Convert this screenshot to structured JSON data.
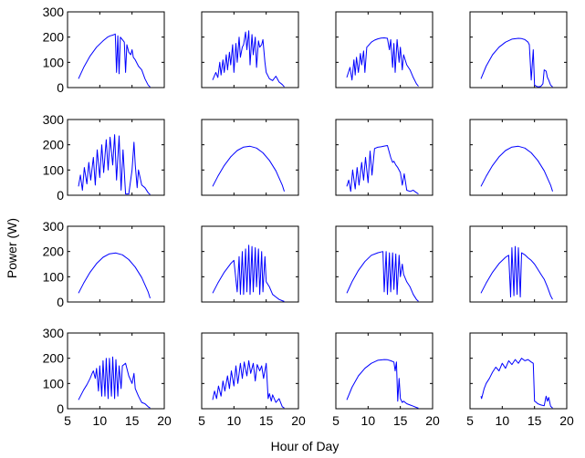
{
  "figure": {
    "xlabel": "Hour of Day",
    "ylabel": "Power (W)",
    "series_color": "#0000ff"
  },
  "chart_data": {
    "type": "line",
    "rows": 4,
    "cols": 4,
    "xlim": [
      5,
      20
    ],
    "ylim": [
      0,
      300
    ],
    "xticks": [
      5,
      10,
      15,
      20
    ],
    "yticks": [
      0,
      100,
      200,
      300
    ],
    "xtick_labels": [
      "5",
      "10",
      "15",
      "20"
    ],
    "ytick_labels": [
      "0",
      "100",
      "200",
      "300"
    ],
    "xlabel": "Hour of Day",
    "ylabel": "Power (W)",
    "grid": false,
    "panels": [
      {
        "x": [
          6.7,
          7.5,
          8.5,
          9.5,
          10.5,
          11.2,
          11.6,
          12.0,
          12.2,
          12.4,
          12.6,
          12.8,
          13.0,
          13.2,
          13.5,
          13.8,
          14.0,
          14.2,
          14.5,
          14.8,
          15.0,
          15.2,
          15.5,
          16.0,
          16.5,
          17.0,
          17.5,
          17.8
        ],
        "y": [
          35,
          80,
          125,
          160,
          185,
          200,
          205,
          208,
          210,
          212,
          60,
          205,
          55,
          200,
          190,
          180,
          60,
          170,
          140,
          130,
          150,
          120,
          110,
          85,
          70,
          35,
          10,
          2
        ]
      },
      {
        "x": [
          6.7,
          7.2,
          7.5,
          7.8,
          8.0,
          8.3,
          8.5,
          8.8,
          9.0,
          9.3,
          9.5,
          9.8,
          10.0,
          10.3,
          10.5,
          10.8,
          11.0,
          11.3,
          11.5,
          11.8,
          12.0,
          12.3,
          12.5,
          12.8,
          13.0,
          13.3,
          13.5,
          13.8,
          14.0,
          14.3,
          14.5,
          14.8,
          15.0,
          15.5,
          16.0,
          16.5,
          17.0,
          17.5,
          17.8
        ],
        "y": [
          30,
          60,
          40,
          100,
          50,
          110,
          60,
          130,
          70,
          140,
          90,
          170,
          60,
          175,
          100,
          200,
          120,
          160,
          170,
          220,
          150,
          225,
          90,
          210,
          130,
          200,
          80,
          185,
          160,
          170,
          190,
          100,
          60,
          35,
          28,
          45,
          22,
          12,
          3
        ]
      },
      {
        "x": [
          6.7,
          7.2,
          7.5,
          7.8,
          8.0,
          8.2,
          8.5,
          8.8,
          9.0,
          9.3,
          9.5,
          9.8,
          10.0,
          10.5,
          11.0,
          11.5,
          12.0,
          12.5,
          13.0,
          13.3,
          13.5,
          13.8,
          14.0,
          14.2,
          14.5,
          14.8,
          15.0,
          15.3,
          15.5,
          16.0,
          16.5,
          17.0,
          17.5,
          17.8
        ],
        "y": [
          40,
          80,
          30,
          110,
          50,
          120,
          60,
          135,
          90,
          145,
          60,
          160,
          165,
          180,
          188,
          193,
          196,
          197,
          195,
          150,
          190,
          80,
          175,
          60,
          190,
          100,
          160,
          70,
          130,
          90,
          70,
          40,
          15,
          5
        ]
      },
      {
        "x": [
          6.7,
          7.5,
          8.5,
          9.5,
          10.5,
          11.5,
          12.5,
          13.0,
          13.5,
          14.0,
          14.2,
          14.5,
          14.8,
          15.0,
          15.3,
          15.6,
          16.0,
          16.3,
          16.5,
          16.8,
          17.0,
          17.2,
          17.5,
          17.8
        ],
        "y": [
          35,
          85,
          130,
          160,
          180,
          192,
          195,
          194,
          190,
          180,
          170,
          30,
          150,
          10,
          5,
          3,
          5,
          15,
          70,
          65,
          40,
          30,
          10,
          3
        ]
      },
      {
        "x": [
          6.7,
          7.0,
          7.3,
          7.6,
          8.0,
          8.3,
          8.6,
          9.0,
          9.3,
          9.6,
          10.0,
          10.3,
          10.6,
          11.0,
          11.3,
          11.6,
          12.0,
          12.3,
          12.6,
          13.0,
          13.3,
          13.6,
          14.0,
          14.5,
          15.0,
          15.3,
          15.5,
          15.8,
          16.0,
          16.5,
          17.0,
          17.5,
          17.8
        ],
        "y": [
          35,
          80,
          20,
          110,
          45,
          130,
          60,
          150,
          40,
          180,
          70,
          200,
          90,
          220,
          100,
          230,
          120,
          240,
          60,
          235,
          20,
          180,
          5,
          5,
          100,
          210,
          120,
          30,
          100,
          40,
          30,
          10,
          3
        ]
      },
      {
        "x": [
          6.7,
          7.5,
          8.5,
          9.5,
          10.5,
          11.5,
          12.5,
          13.5,
          14.5,
          15.5,
          16.5,
          17.5,
          17.8
        ],
        "y": [
          35,
          75,
          118,
          152,
          177,
          191,
          194,
          187,
          168,
          138,
          97,
          40,
          15
        ]
      },
      {
        "x": [
          6.7,
          7.0,
          7.3,
          7.6,
          8.0,
          8.3,
          8.6,
          9.0,
          9.3,
          9.6,
          10.0,
          10.3,
          10.6,
          11.0,
          11.5,
          12.0,
          12.5,
          13.0,
          13.5,
          13.8,
          14.0,
          14.3,
          14.6,
          15.0,
          15.3,
          15.6,
          16.0,
          16.5,
          17.0,
          17.5,
          17.8
        ],
        "y": [
          35,
          60,
          15,
          100,
          25,
          110,
          40,
          130,
          60,
          150,
          50,
          175,
          80,
          185,
          190,
          192,
          195,
          197,
          150,
          130,
          135,
          120,
          110,
          90,
          40,
          85,
          20,
          15,
          20,
          10,
          5
        ]
      },
      {
        "x": [
          6.7,
          7.5,
          8.5,
          9.5,
          10.5,
          11.5,
          12.5,
          13.5,
          14.5,
          15.5,
          16.5,
          17.5,
          17.8
        ],
        "y": [
          35,
          75,
          118,
          152,
          177,
          191,
          194,
          187,
          168,
          138,
          97,
          40,
          15
        ]
      },
      {
        "x": [
          6.7,
          7.5,
          8.5,
          9.5,
          10.5,
          11.5,
          12.5,
          13.5,
          14.5,
          15.5,
          16.5,
          17.5,
          17.8
        ],
        "y": [
          35,
          75,
          118,
          152,
          177,
          191,
          194,
          187,
          168,
          138,
          97,
          40,
          15
        ]
      },
      {
        "x": [
          6.7,
          7.5,
          8.5,
          9.5,
          10.0,
          10.5,
          10.8,
          11.0,
          11.3,
          11.5,
          11.8,
          12.0,
          12.3,
          12.5,
          12.8,
          13.0,
          13.3,
          13.5,
          13.8,
          14.0,
          14.3,
          14.5,
          14.8,
          15.0,
          15.5,
          16.0,
          16.5,
          17.0,
          17.5,
          17.8
        ],
        "y": [
          35,
          75,
          118,
          152,
          165,
          40,
          180,
          30,
          200,
          30,
          210,
          40,
          225,
          30,
          220,
          40,
          215,
          60,
          210,
          30,
          200,
          40,
          180,
          80,
          60,
          30,
          20,
          10,
          5,
          2
        ]
      },
      {
        "x": [
          6.7,
          7.5,
          8.5,
          9.5,
          10.5,
          11.5,
          12.0,
          12.3,
          12.5,
          12.8,
          13.0,
          13.3,
          13.5,
          13.8,
          14.0,
          14.3,
          14.5,
          14.8,
          15.0,
          15.3,
          15.5,
          16.0,
          16.5,
          17.0,
          17.5,
          17.8
        ],
        "y": [
          35,
          80,
          125,
          160,
          185,
          195,
          198,
          200,
          40,
          200,
          30,
          195,
          40,
          195,
          50,
          190,
          30,
          185,
          100,
          150,
          110,
          80,
          60,
          30,
          10,
          3
        ]
      },
      {
        "x": [
          6.7,
          7.5,
          8.5,
          9.5,
          10.5,
          11.0,
          11.3,
          11.5,
          11.8,
          12.0,
          12.3,
          12.5,
          12.8,
          13.0,
          13.5,
          14.0,
          14.5,
          15.0,
          15.5,
          16.0,
          16.5,
          17.0,
          17.5,
          17.8
        ],
        "y": [
          35,
          75,
          118,
          152,
          177,
          185,
          20,
          215,
          25,
          220,
          30,
          215,
          20,
          195,
          187,
          175,
          165,
          150,
          130,
          110,
          90,
          60,
          25,
          10
        ]
      },
      {
        "x": [
          6.7,
          7.5,
          8.0,
          8.5,
          8.8,
          9.0,
          9.3,
          9.5,
          9.8,
          10.0,
          10.3,
          10.5,
          10.8,
          11.0,
          11.3,
          11.5,
          11.8,
          12.0,
          12.3,
          12.5,
          12.8,
          13.0,
          13.3,
          13.5,
          14.0,
          14.5,
          15.0,
          15.3,
          15.5,
          16.0,
          16.5,
          17.0,
          17.5,
          17.8
        ],
        "y": [
          35,
          75,
          95,
          120,
          140,
          150,
          120,
          160,
          70,
          170,
          50,
          190,
          50,
          200,
          40,
          200,
          50,
          205,
          40,
          195,
          50,
          170,
          80,
          170,
          180,
          130,
          100,
          140,
          80,
          50,
          25,
          20,
          8,
          3
        ]
      },
      {
        "x": [
          6.7,
          7.0,
          7.3,
          7.6,
          8.0,
          8.3,
          8.6,
          9.0,
          9.3,
          9.6,
          10.0,
          10.3,
          10.6,
          11.0,
          11.3,
          11.6,
          12.0,
          12.3,
          12.6,
          13.0,
          13.3,
          13.6,
          14.0,
          14.3,
          14.6,
          15.0,
          15.3,
          15.5,
          15.8,
          16.0,
          16.5,
          17.0,
          17.5,
          17.8
        ],
        "y": [
          35,
          70,
          40,
          90,
          50,
          110,
          70,
          130,
          80,
          150,
          90,
          170,
          100,
          180,
          120,
          185,
          130,
          190,
          140,
          180,
          110,
          175,
          150,
          170,
          120,
          180,
          40,
          60,
          30,
          55,
          25,
          40,
          8,
          3
        ]
      },
      {
        "x": [
          6.7,
          7.5,
          8.5,
          9.5,
          10.5,
          11.5,
          12.5,
          13.0,
          13.5,
          14.0,
          14.2,
          14.4,
          14.6,
          14.8,
          15.0,
          15.3,
          15.5,
          16.0,
          16.5,
          17.0,
          17.5,
          17.8
        ],
        "y": [
          35,
          85,
          130,
          160,
          180,
          192,
          195,
          194,
          190,
          185,
          150,
          185,
          30,
          120,
          40,
          25,
          30,
          20,
          15,
          10,
          5,
          2
        ]
      },
      {
        "x": [
          6.7,
          6.8,
          7.0,
          7.2,
          7.5,
          8.0,
          8.5,
          9.0,
          9.5,
          10.0,
          10.5,
          11.0,
          11.5,
          12.0,
          12.5,
          13.0,
          13.5,
          14.0,
          14.5,
          14.8,
          15.0,
          15.3,
          15.5,
          16.0,
          16.5,
          16.8,
          17.0,
          17.2,
          17.5,
          17.8
        ],
        "y": [
          50,
          40,
          60,
          80,
          100,
          120,
          145,
          165,
          150,
          180,
          160,
          190,
          175,
          195,
          180,
          200,
          190,
          195,
          185,
          180,
          30,
          25,
          20,
          15,
          12,
          50,
          30,
          45,
          10,
          3
        ]
      }
    ]
  }
}
